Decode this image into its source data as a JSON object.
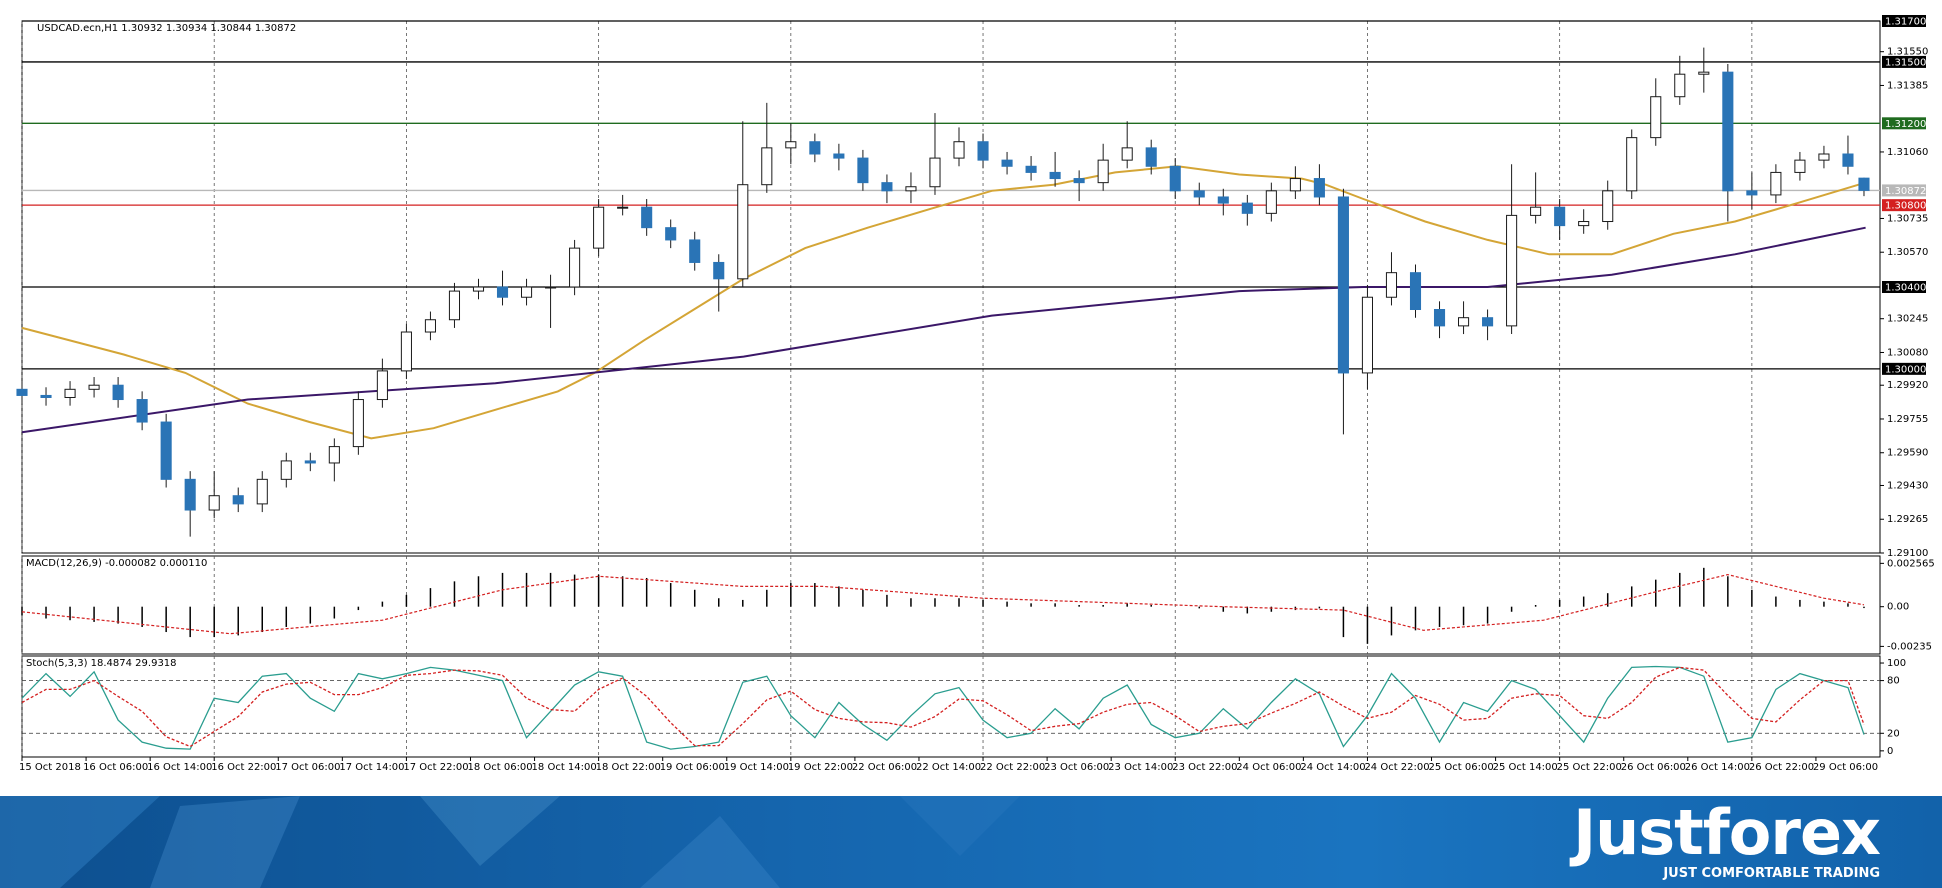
{
  "chart_data": [
    {
      "type": "candlestick",
      "title": "USDCAD.ecn,H1  1.30932 1.30934 1.30844 1.30872",
      "x": [
        0,
        3,
        6,
        9,
        12,
        15,
        18,
        21,
        24,
        27,
        30,
        33,
        36,
        39,
        42,
        45,
        48,
        51,
        54,
        57,
        60,
        63,
        66,
        69,
        72,
        75,
        78,
        81,
        84,
        87,
        90,
        93,
        96,
        99,
        102,
        105,
        108,
        111,
        114,
        117,
        120,
        123,
        126,
        129,
        132,
        135,
        138,
        141,
        144,
        147,
        150,
        153,
        156,
        159,
        162,
        165,
        168,
        171,
        174,
        177,
        180,
        183,
        186,
        189,
        192,
        195,
        198,
        201,
        204,
        207,
        210,
        213,
        216,
        219,
        222,
        225,
        228,
        230
      ],
      "open": [
        1.299,
        1.2987,
        1.2986,
        1.299,
        1.2992,
        1.2985,
        1.2974,
        1.2946,
        1.2931,
        1.2938,
        1.2934,
        1.2946,
        1.2955,
        1.2954,
        1.2962,
        1.2985,
        1.2999,
        1.3018,
        1.3024,
        1.3038,
        1.304,
        1.3035,
        1.304,
        1.304,
        1.3059,
        1.3079,
        1.3079,
        1.3069,
        1.3063,
        1.3052,
        1.3044,
        1.309,
        1.3108,
        1.3111,
        1.3105,
        1.3103,
        1.3091,
        1.3087,
        1.3089,
        1.3103,
        1.3111,
        1.3102,
        1.3099,
        1.3096,
        1.3093,
        1.3091,
        1.3102,
        1.3108,
        1.3099,
        1.3087,
        1.3084,
        1.3081,
        1.3076,
        1.3087,
        1.3093,
        1.3084,
        1.2998,
        1.3035,
        1.3047,
        1.3029,
        1.3021,
        1.3025,
        1.3021,
        1.3075,
        1.3079,
        1.307,
        1.3072,
        1.3087,
        1.3113,
        1.3133,
        1.3144,
        1.3145,
        1.3087,
        1.3085,
        1.3096,
        1.3102,
        1.3105,
        1.30932
      ],
      "high": [
        1.2994,
        1.2991,
        1.2994,
        1.2996,
        1.2996,
        1.2989,
        1.2978,
        1.295,
        1.295,
        1.2942,
        1.295,
        1.2959,
        1.2959,
        1.2966,
        1.2989,
        1.3005,
        1.3022,
        1.3028,
        1.3042,
        1.3044,
        1.3048,
        1.3044,
        1.3046,
        1.3063,
        1.3083,
        1.3085,
        1.3083,
        1.3073,
        1.3067,
        1.3056,
        1.3121,
        1.313,
        1.312,
        1.3115,
        1.311,
        1.3107,
        1.3095,
        1.3096,
        1.3125,
        1.3118,
        1.3115,
        1.3106,
        1.3104,
        1.3106,
        1.3097,
        1.311,
        1.3121,
        1.3112,
        1.3103,
        1.3091,
        1.3088,
        1.3085,
        1.3091,
        1.3099,
        1.31,
        1.3088,
        1.3041,
        1.3057,
        1.3051,
        1.3033,
        1.3033,
        1.3029,
        1.31,
        1.3096,
        1.3083,
        1.3078,
        1.3092,
        1.3117,
        1.3142,
        1.3153,
        1.3157,
        1.3149,
        1.3096,
        1.31,
        1.3106,
        1.3109,
        1.3114,
        1.30934
      ],
      "low": [
        1.2983,
        1.2982,
        1.2982,
        1.2986,
        1.2981,
        1.297,
        1.2942,
        1.2918,
        1.2927,
        1.293,
        1.293,
        1.2942,
        1.295,
        1.2945,
        1.2958,
        1.2981,
        1.2995,
        1.3014,
        1.302,
        1.3034,
        1.3031,
        1.3031,
        1.302,
        1.3036,
        1.3055,
        1.3075,
        1.3065,
        1.3059,
        1.3048,
        1.3028,
        1.304,
        1.3086,
        1.31,
        1.3101,
        1.3097,
        1.3087,
        1.3081,
        1.3081,
        1.3085,
        1.3099,
        1.3098,
        1.3095,
        1.3092,
        1.3089,
        1.3082,
        1.3087,
        1.3098,
        1.3095,
        1.3083,
        1.308,
        1.3075,
        1.307,
        1.3072,
        1.3083,
        1.308,
        1.2968,
        1.299,
        1.3031,
        1.3025,
        1.3015,
        1.3017,
        1.3014,
        1.3017,
        1.3071,
        1.3063,
        1.3066,
        1.3068,
        1.3083,
        1.3109,
        1.3129,
        1.3135,
        1.3072,
        1.3078,
        1.3081,
        1.3092,
        1.3098,
        1.3095,
        1.30844
      ],
      "close": [
        1.2987,
        1.2986,
        1.299,
        1.2992,
        1.2985,
        1.2974,
        1.2946,
        1.2931,
        1.2938,
        1.2934,
        1.2946,
        1.2955,
        1.2954,
        1.2962,
        1.2985,
        1.2999,
        1.3018,
        1.3024,
        1.3038,
        1.304,
        1.3035,
        1.304,
        1.304,
        1.3059,
        1.3079,
        1.3079,
        1.3069,
        1.3063,
        1.3052,
        1.3044,
        1.309,
        1.3108,
        1.3111,
        1.3105,
        1.3103,
        1.3091,
        1.3087,
        1.3089,
        1.3103,
        1.3111,
        1.3102,
        1.3099,
        1.3096,
        1.3093,
        1.3091,
        1.3102,
        1.3108,
        1.3099,
        1.3087,
        1.3084,
        1.3081,
        1.3076,
        1.3087,
        1.3093,
        1.3084,
        1.2998,
        1.3035,
        1.3047,
        1.3029,
        1.3021,
        1.3025,
        1.3021,
        1.3075,
        1.3079,
        1.307,
        1.3072,
        1.3087,
        1.3113,
        1.3133,
        1.3144,
        1.3145,
        1.3087,
        1.3085,
        1.3096,
        1.3102,
        1.3105,
        1.3099,
        1.30872
      ],
      "up_color": "#ffffff",
      "down_color": "#2a74b6",
      "wick_color": "#1a1a1a",
      "overlays": [
        {
          "color": "#d4a536",
          "x": [
            0,
            12.7,
            20.4,
            28.2,
            35.9,
            43.6,
            51.4,
            59.1,
            66.9,
            71.5,
            77.7,
            83.9,
            90.1,
            97.8,
            105.6,
            113.3,
            121.1,
            128.8,
            136.5,
            144.3,
            152,
            159.8,
            162.8,
            167.5,
            175.2,
            183,
            190.7,
            198.5,
            206.2,
            213.9,
            221.7,
            230.2
          ],
          "values": [
            1.302,
            1.3007,
            1.2998,
            1.2983,
            1.2974,
            1.2966,
            1.2971,
            1.298,
            1.2989,
            1.2998,
            1.3014,
            1.3029,
            1.3044,
            1.3059,
            1.3069,
            1.3078,
            1.3087,
            1.309,
            1.3096,
            1.3099,
            1.3095,
            1.3093,
            1.309,
            1.3083,
            1.3072,
            1.3063,
            1.3056,
            1.3056,
            1.3066,
            1.3072,
            1.3081,
            1.3091
          ]
        },
        {
          "color": "#3b1768",
          "x": [
            0,
            28.2,
            59.1,
            90.1,
            121.1,
            152,
            167.5,
            183,
            198.5,
            213.9,
            230.2
          ],
          "values": [
            1.2969,
            1.2985,
            1.2993,
            1.3006,
            1.3026,
            1.3038,
            1.304,
            1.304,
            1.3046,
            1.3056,
            1.3069
          ]
        }
      ],
      "levels": [
        {
          "value": 1.317,
          "label": "1.31700",
          "color": "#000000"
        },
        {
          "value": 1.315,
          "label": "1.31500",
          "color": "#000000"
        },
        {
          "value": 1.312,
          "label": "1.31200",
          "color": "#1f6b1f"
        },
        {
          "value": 1.30872,
          "label": "1.30872",
          "color": "#b8b8b8"
        },
        {
          "value": 1.308,
          "label": "1.30800",
          "color": "#d42020"
        },
        {
          "value": 1.304,
          "label": "1.30400",
          "color": "#000000"
        },
        {
          "value": 1.3,
          "label": "1.30000",
          "color": "#000000"
        }
      ],
      "xlim": [
        0,
        232
      ],
      "ylim": [
        1.291,
        1.317
      ],
      "yticks": [
        {
          "value": 1.3155,
          "label": "1.31550"
        },
        {
          "value": 1.31385,
          "label": "1.31385"
        },
        {
          "value": 1.3106,
          "label": "1.31060"
        },
        {
          "value": 1.30735,
          "label": "1.30735"
        },
        {
          "value": 1.3057,
          "label": "1.30570"
        },
        {
          "value": 1.30245,
          "label": "1.30245"
        },
        {
          "value": 1.3008,
          "label": "1.30080"
        },
        {
          "value": 1.2992,
          "label": "1.29920"
        },
        {
          "value": 1.29755,
          "label": "1.29755"
        },
        {
          "value": 1.2959,
          "label": "1.29590"
        },
        {
          "value": 1.2943,
          "label": "1.29430"
        },
        {
          "value": 1.29265,
          "label": "1.29265"
        },
        {
          "value": 1.291,
          "label": "1.29100"
        }
      ]
    },
    {
      "type": "macd",
      "title": "MACD(12,26,9) -0.000082 0.000110",
      "x": [
        0,
        3,
        6,
        9,
        12,
        15,
        18,
        21,
        24,
        27,
        30,
        33,
        36,
        39,
        42,
        45,
        48,
        51,
        54,
        57,
        60,
        63,
        66,
        69,
        72,
        75,
        78,
        81,
        84,
        87,
        90,
        93,
        96,
        99,
        102,
        105,
        108,
        111,
        114,
        117,
        120,
        123,
        126,
        129,
        132,
        135,
        138,
        141,
        144,
        147,
        150,
        153,
        156,
        159,
        162,
        165,
        168,
        171,
        174,
        177,
        180,
        183,
        186,
        189,
        192,
        195,
        198,
        201,
        204,
        207,
        210,
        213,
        216,
        219,
        222,
        225,
        228,
        230
      ],
      "values": [
        -0.0005,
        -0.0007,
        -0.0008,
        -0.0009,
        -0.001,
        -0.0012,
        -0.0015,
        -0.0018,
        -0.0018,
        -0.0017,
        -0.0015,
        -0.0012,
        -0.001,
        -0.0007,
        -0.0002,
        0.0003,
        0.0007,
        0.0011,
        0.0015,
        0.0018,
        0.002,
        0.002,
        0.002,
        0.0019,
        0.0019,
        0.0018,
        0.0017,
        0.0014,
        0.001,
        0.0005,
        0.0004,
        0.001,
        0.0014,
        0.0014,
        0.0012,
        0.001,
        0.0007,
        0.0005,
        0.0005,
        0.0005,
        0.0004,
        0.0003,
        0.0002,
        0.0002,
        0.0001,
        0.0001,
        0.0002,
        0.0001,
        0,
        -0.0001,
        -0.0003,
        -0.0004,
        -0.0003,
        -0.0002,
        -0.0001,
        -0.0018,
        -0.0022,
        -0.0017,
        -0.0014,
        -0.0012,
        -0.0011,
        -0.001,
        -0.0003,
        0.0001,
        0.0004,
        0.0006,
        0.0008,
        0.0012,
        0.0016,
        0.002,
        0.0023,
        0.0018,
        0.001,
        0.0006,
        0.0004,
        0.0003,
        0.0002,
        -8.2e-05
      ],
      "color": "#000000",
      "signal": {
        "color": "#d42020",
        "x": [
          0,
          26,
          45,
          60,
          72,
          90,
          100,
          120,
          150,
          165,
          175,
          190,
          205,
          213,
          225,
          230
        ],
        "values": [
          -0.0003,
          -0.0016,
          -0.0008,
          0.001,
          0.0018,
          0.0012,
          0.0012,
          0.0005,
          0,
          -0.0002,
          -0.0014,
          -0.0008,
          0.001,
          0.0019,
          0.0005,
          0.00011
        ]
      },
      "xlim": [
        0,
        232
      ],
      "ylim": [
        -0.0028,
        0.003
      ],
      "yticks": [
        0.002565,
        {
          "value": 0,
          "label": "0.00"
        },
        -0.00235
      ]
    },
    {
      "type": "line",
      "title": "Stoch(5,3,3) 18.4874 29.9318",
      "x": [
        0,
        3,
        6,
        9,
        12,
        15,
        18,
        21,
        24,
        27,
        30,
        33,
        36,
        39,
        42,
        45,
        48,
        51,
        54,
        57,
        60,
        63,
        66,
        69,
        72,
        75,
        78,
        81,
        84,
        87,
        90,
        93,
        96,
        99,
        102,
        105,
        108,
        111,
        114,
        117,
        120,
        123,
        126,
        129,
        132,
        135,
        138,
        141,
        144,
        147,
        150,
        153,
        156,
        159,
        162,
        165,
        168,
        171,
        174,
        177,
        180,
        183,
        186,
        189,
        192,
        195,
        198,
        201,
        204,
        207,
        210,
        213,
        216,
        219,
        222,
        225,
        228,
        230
      ],
      "series": [
        {
          "color": "#2a9d8f",
          "values": [
            60,
            88,
            62,
            90,
            35,
            10,
            3,
            2,
            60,
            55,
            85,
            88,
            60,
            45,
            88,
            82,
            88,
            95,
            92,
            86,
            80,
            15,
            45,
            75,
            90,
            85,
            10,
            2,
            5,
            10,
            78,
            85,
            40,
            15,
            55,
            30,
            12,
            40,
            65,
            72,
            35,
            15,
            20,
            48,
            25,
            60,
            75,
            30,
            15,
            20,
            48,
            25,
            55,
            82,
            65,
            5,
            40,
            88,
            60,
            10,
            55,
            45,
            80,
            70,
            40,
            10,
            60,
            95,
            96,
            95,
            85,
            10,
            15,
            70,
            88,
            80,
            72,
            18.4874
          ]
        },
        {
          "color": "#d42020",
          "dashed": true,
          "values": [
            55,
            70,
            70,
            80,
            62,
            45,
            16,
            5,
            22,
            39,
            67,
            76,
            78,
            64,
            64,
            72,
            86,
            88,
            92,
            91,
            86,
            60,
            47,
            45,
            70,
            83,
            62,
            32,
            6,
            6,
            31,
            58,
            68,
            47,
            37,
            33,
            32,
            27,
            39,
            59,
            57,
            41,
            23,
            28,
            31,
            44,
            53,
            55,
            40,
            22,
            28,
            31,
            43,
            54,
            67,
            51,
            37,
            44,
            63,
            53,
            35,
            37,
            60,
            65,
            63,
            40,
            37,
            55,
            84,
            95,
            92,
            63,
            37,
            33,
            58,
            80,
            80,
            29.9318
          ]
        }
      ],
      "levels": [
        80,
        20
      ],
      "xlim": [
        0,
        232
      ],
      "ylim": [
        -7,
        108
      ],
      "yticks": [
        100,
        80,
        20,
        0
      ],
      "xticks": [
        {
          "value": 0,
          "label": "15 Oct 2018"
        },
        {
          "value": 8,
          "label": "16 Oct 06:00"
        },
        {
          "value": 16,
          "label": "16 Oct 14:00"
        },
        {
          "value": 24,
          "label": "16 Oct 22:00"
        },
        {
          "value": 32,
          "label": "17 Oct 06:00"
        },
        {
          "value": 40,
          "label": "17 Oct 14:00"
        },
        {
          "value": 48,
          "label": "17 Oct 22:00"
        },
        {
          "value": 56,
          "label": "18 Oct 06:00"
        },
        {
          "value": 64,
          "label": "18 Oct 14:00"
        },
        {
          "value": 72,
          "label": "18 Oct 22:00"
        },
        {
          "value": 80,
          "label": "19 Oct 06:00"
        },
        {
          "value": 88,
          "label": "19 Oct 14:00"
        },
        {
          "value": 96,
          "label": "19 Oct 22:00"
        },
        {
          "value": 104,
          "label": "22 Oct 06:00"
        },
        {
          "value": 112,
          "label": "22 Oct 14:00"
        },
        {
          "value": 120,
          "label": "22 Oct 22:00"
        },
        {
          "value": 128,
          "label": "23 Oct 06:00"
        },
        {
          "value": 136,
          "label": "23 Oct 14:00"
        },
        {
          "value": 144,
          "label": "23 Oct 22:00"
        },
        {
          "value": 152,
          "label": "24 Oct 06:00"
        },
        {
          "value": 160,
          "label": "24 Oct 14:00"
        },
        {
          "value": 168,
          "label": "24 Oct 22:00"
        },
        {
          "value": 176,
          "label": "25 Oct 06:00"
        },
        {
          "value": 184,
          "label": "25 Oct 14:00"
        },
        {
          "value": 192,
          "label": "25 Oct 22:00"
        },
        {
          "value": 200,
          "label": "26 Oct 06:00"
        },
        {
          "value": 208,
          "label": "26 Oct 14:00"
        },
        {
          "value": 216,
          "label": "26 Oct 22:00"
        },
        {
          "value": 224,
          "label": "29 Oct 06:00"
        }
      ],
      "xgrid": true
    }
  ],
  "branding": {
    "logo": "Justforex",
    "tagline": "JUST COMFORTABLE TRADING"
  }
}
